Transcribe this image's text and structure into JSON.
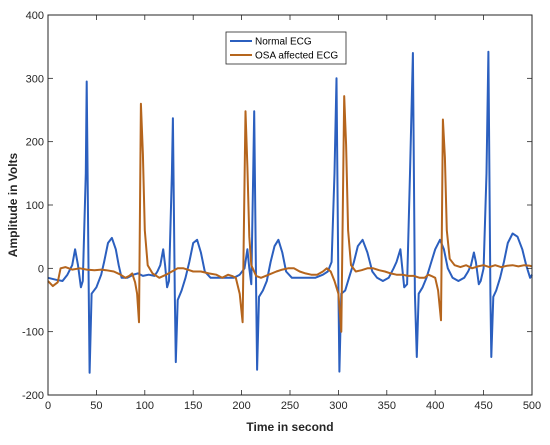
{
  "chart_data": {
    "type": "line",
    "title": "",
    "xlabel": "Time in second",
    "ylabel": "Amplitude in Volts",
    "xlim": [
      0,
      500
    ],
    "ylim": [
      -200,
      400
    ],
    "xticks": [
      0,
      50,
      100,
      150,
      200,
      250,
      300,
      350,
      400,
      450,
      500
    ],
    "yticks": [
      -200,
      -100,
      0,
      100,
      200,
      300,
      400
    ],
    "grid": false,
    "legend_position": "top-center",
    "series": [
      {
        "name": "Normal ECG",
        "color": "#2b5fbf",
        "points": [
          [
            0,
            -15
          ],
          [
            8,
            -18
          ],
          [
            15,
            -20
          ],
          [
            20,
            -10
          ],
          [
            25,
            5
          ],
          [
            28,
            30
          ],
          [
            31,
            5
          ],
          [
            34,
            -30
          ],
          [
            36,
            -20
          ],
          [
            39,
            150
          ],
          [
            40,
            295
          ],
          [
            42,
            -30
          ],
          [
            43,
            -165
          ],
          [
            45,
            -40
          ],
          [
            50,
            -30
          ],
          [
            55,
            -10
          ],
          [
            58,
            10
          ],
          [
            62,
            40
          ],
          [
            66,
            48
          ],
          [
            70,
            30
          ],
          [
            73,
            5
          ],
          [
            76,
            -15
          ],
          [
            82,
            -15
          ],
          [
            88,
            -10
          ],
          [
            93,
            -8
          ],
          [
            98,
            -12
          ],
          [
            104,
            -10
          ],
          [
            110,
            -12
          ],
          [
            113,
            -5
          ],
          [
            116,
            5
          ],
          [
            119,
            30
          ],
          [
            121,
            5
          ],
          [
            123,
            -30
          ],
          [
            125,
            -20
          ],
          [
            128,
            150
          ],
          [
            129,
            237
          ],
          [
            131,
            -40
          ],
          [
            132,
            -148
          ],
          [
            134,
            -50
          ],
          [
            138,
            -35
          ],
          [
            142,
            -15
          ],
          [
            146,
            10
          ],
          [
            150,
            40
          ],
          [
            154,
            45
          ],
          [
            158,
            25
          ],
          [
            162,
            -5
          ],
          [
            168,
            -15
          ],
          [
            176,
            -15
          ],
          [
            184,
            -15
          ],
          [
            192,
            -15
          ],
          [
            198,
            -10
          ],
          [
            203,
            0
          ],
          [
            206,
            30
          ],
          [
            208,
            0
          ],
          [
            210,
            -25
          ],
          [
            212,
            150
          ],
          [
            213,
            248
          ],
          [
            215,
            -30
          ],
          [
            216,
            -160
          ],
          [
            218,
            -45
          ],
          [
            222,
            -35
          ],
          [
            226,
            -20
          ],
          [
            230,
            10
          ],
          [
            234,
            35
          ],
          [
            238,
            45
          ],
          [
            242,
            25
          ],
          [
            246,
            -5
          ],
          [
            252,
            -15
          ],
          [
            260,
            -15
          ],
          [
            268,
            -15
          ],
          [
            276,
            -15
          ],
          [
            284,
            -10
          ],
          [
            289,
            -5
          ],
          [
            293,
            10
          ],
          [
            296,
            150
          ],
          [
            298,
            300
          ],
          [
            300,
            -30
          ],
          [
            301,
            -163
          ],
          [
            303,
            -40
          ],
          [
            307,
            -35
          ],
          [
            311,
            -15
          ],
          [
            316,
            10
          ],
          [
            320,
            35
          ],
          [
            325,
            45
          ],
          [
            330,
            25
          ],
          [
            335,
            -5
          ],
          [
            340,
            -15
          ],
          [
            346,
            -20
          ],
          [
            352,
            -15
          ],
          [
            357,
            0
          ],
          [
            360,
            10
          ],
          [
            364,
            30
          ],
          [
            366,
            0
          ],
          [
            368,
            -30
          ],
          [
            371,
            -25
          ],
          [
            374,
            150
          ],
          [
            377,
            340
          ],
          [
            379,
            -40
          ],
          [
            381,
            -140
          ],
          [
            383,
            -40
          ],
          [
            387,
            -30
          ],
          [
            391,
            -15
          ],
          [
            396,
            10
          ],
          [
            400,
            30
          ],
          [
            405,
            45
          ],
          [
            409,
            30
          ],
          [
            413,
            0
          ],
          [
            418,
            -15
          ],
          [
            424,
            -20
          ],
          [
            430,
            -15
          ],
          [
            434,
            -5
          ],
          [
            437,
            5
          ],
          [
            440,
            25
          ],
          [
            442,
            10
          ],
          [
            445,
            -25
          ],
          [
            447,
            -20
          ],
          [
            450,
            0
          ],
          [
            453,
            150
          ],
          [
            455,
            342
          ],
          [
            457,
            -40
          ],
          [
            458,
            -140
          ],
          [
            460,
            -45
          ],
          [
            463,
            -35
          ],
          [
            467,
            -15
          ],
          [
            471,
            10
          ],
          [
            475,
            40
          ],
          [
            480,
            55
          ],
          [
            485,
            50
          ],
          [
            490,
            30
          ],
          [
            494,
            5
          ],
          [
            498,
            -15
          ],
          [
            500,
            -10
          ]
        ]
      },
      {
        "name": "OSA affected ECG",
        "color": "#b5651d",
        "points": [
          [
            0,
            -20
          ],
          [
            5,
            -28
          ],
          [
            10,
            -22
          ],
          [
            13,
            0
          ],
          [
            18,
            2
          ],
          [
            25,
            -2
          ],
          [
            33,
            0
          ],
          [
            40,
            -2
          ],
          [
            48,
            -3
          ],
          [
            55,
            -2
          ],
          [
            60,
            -3
          ],
          [
            68,
            -5
          ],
          [
            75,
            -10
          ],
          [
            80,
            -15
          ],
          [
            84,
            -12
          ],
          [
            87,
            -8
          ],
          [
            90,
            -22
          ],
          [
            92,
            -40
          ],
          [
            94,
            -85
          ],
          [
            96,
            260
          ],
          [
            98,
            180
          ],
          [
            100,
            60
          ],
          [
            103,
            5
          ],
          [
            108,
            -8
          ],
          [
            115,
            -15
          ],
          [
            122,
            -10
          ],
          [
            128,
            -5
          ],
          [
            134,
            0
          ],
          [
            140,
            0
          ],
          [
            146,
            -3
          ],
          [
            150,
            -5
          ],
          [
            158,
            -5
          ],
          [
            166,
            -8
          ],
          [
            174,
            -10
          ],
          [
            180,
            -15
          ],
          [
            186,
            -10
          ],
          [
            190,
            -12
          ],
          [
            194,
            -15
          ],
          [
            198,
            -40
          ],
          [
            201,
            -85
          ],
          [
            204,
            248
          ],
          [
            206,
            160
          ],
          [
            208,
            50
          ],
          [
            210,
            5
          ],
          [
            215,
            -12
          ],
          [
            220,
            -15
          ],
          [
            228,
            -10
          ],
          [
            236,
            -5
          ],
          [
            242,
            -2
          ],
          [
            248,
            0
          ],
          [
            254,
            0
          ],
          [
            260,
            -5
          ],
          [
            266,
            -8
          ],
          [
            272,
            -10
          ],
          [
            278,
            -10
          ],
          [
            284,
            -5
          ],
          [
            288,
            0
          ],
          [
            292,
            -5
          ],
          [
            296,
            -20
          ],
          [
            300,
            -40
          ],
          [
            303,
            -100
          ],
          [
            306,
            272
          ],
          [
            308,
            195
          ],
          [
            310,
            60
          ],
          [
            313,
            5
          ],
          [
            318,
            -5
          ],
          [
            324,
            -3
          ],
          [
            330,
            0
          ],
          [
            336,
            0
          ],
          [
            342,
            -3
          ],
          [
            348,
            -5
          ],
          [
            354,
            -8
          ],
          [
            360,
            -10
          ],
          [
            366,
            -10
          ],
          [
            372,
            -12
          ],
          [
            378,
            -12
          ],
          [
            384,
            -15
          ],
          [
            389,
            -15
          ],
          [
            393,
            -10
          ],
          [
            396,
            -12
          ],
          [
            400,
            -15
          ],
          [
            403,
            -35
          ],
          [
            406,
            -82
          ],
          [
            408,
            235
          ],
          [
            410,
            175
          ],
          [
            412,
            60
          ],
          [
            415,
            15
          ],
          [
            420,
            5
          ],
          [
            426,
            2
          ],
          [
            432,
            5
          ],
          [
            438,
            0
          ],
          [
            444,
            3
          ],
          [
            450,
            5
          ],
          [
            456,
            2
          ],
          [
            462,
            5
          ],
          [
            468,
            2
          ],
          [
            474,
            4
          ],
          [
            480,
            5
          ],
          [
            486,
            3
          ],
          [
            492,
            5
          ],
          [
            498,
            4
          ],
          [
            500,
            3
          ]
        ]
      }
    ]
  }
}
